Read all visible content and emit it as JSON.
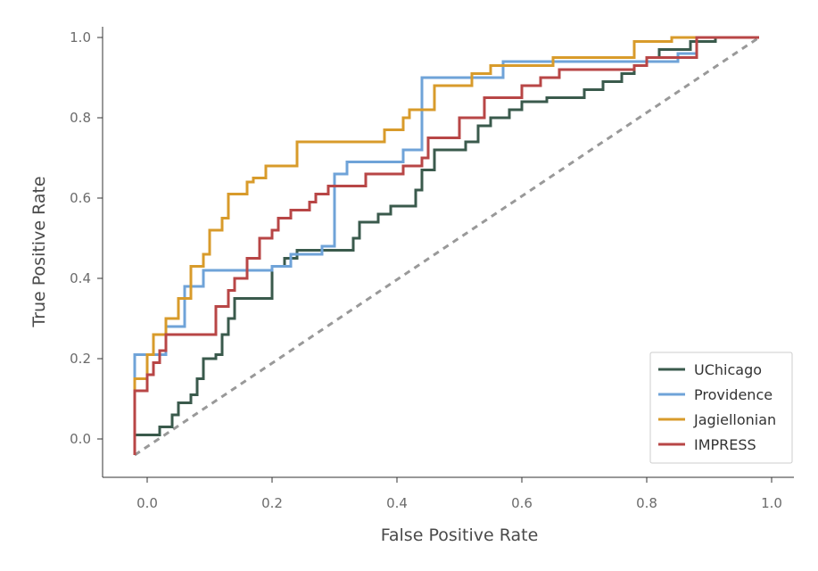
{
  "chart_data": {
    "type": "line",
    "title": "",
    "xlabel": "False Positive Rate",
    "ylabel": "True Positive Rate",
    "xlim": [
      -0.05,
      1.05
    ],
    "ylim": [
      -0.1,
      1.04
    ],
    "xticks": [
      0.0,
      0.2,
      0.4,
      0.6,
      0.8,
      1.0
    ],
    "yticks": [
      0.0,
      0.2,
      0.4,
      0.6,
      0.8,
      1.0
    ],
    "xtick_labels": [
      "0.0",
      "0.2",
      "0.4",
      "0.6",
      "0.8",
      "1.0"
    ],
    "ytick_labels": [
      "0.0",
      "0.2",
      "0.4",
      "0.6",
      "0.8",
      "1.0"
    ],
    "grid": false,
    "legend_position": "lower-right",
    "chance_line": {
      "points": [
        [
          -0.02,
          -0.04
        ],
        [
          0.98,
          1.0
        ]
      ],
      "style": "dashed",
      "color": "#999999"
    },
    "series": [
      {
        "name": "UChicago",
        "color": "#3a5a4c",
        "points": [
          [
            -0.02,
            -0.04
          ],
          [
            -0.02,
            0.01
          ],
          [
            0.02,
            0.01
          ],
          [
            0.02,
            0.03
          ],
          [
            0.04,
            0.03
          ],
          [
            0.04,
            0.06
          ],
          [
            0.05,
            0.06
          ],
          [
            0.05,
            0.09
          ],
          [
            0.07,
            0.09
          ],
          [
            0.07,
            0.11
          ],
          [
            0.08,
            0.11
          ],
          [
            0.08,
            0.13
          ],
          [
            0.08,
            0.15
          ],
          [
            0.09,
            0.15
          ],
          [
            0.09,
            0.2
          ],
          [
            0.11,
            0.2
          ],
          [
            0.11,
            0.21
          ],
          [
            0.12,
            0.21
          ],
          [
            0.12,
            0.26
          ],
          [
            0.13,
            0.26
          ],
          [
            0.13,
            0.3
          ],
          [
            0.14,
            0.3
          ],
          [
            0.14,
            0.35
          ],
          [
            0.2,
            0.35
          ],
          [
            0.2,
            0.43
          ],
          [
            0.22,
            0.43
          ],
          [
            0.22,
            0.45
          ],
          [
            0.24,
            0.45
          ],
          [
            0.24,
            0.47
          ],
          [
            0.33,
            0.47
          ],
          [
            0.33,
            0.5
          ],
          [
            0.34,
            0.5
          ],
          [
            0.34,
            0.54
          ],
          [
            0.37,
            0.54
          ],
          [
            0.37,
            0.56
          ],
          [
            0.39,
            0.56
          ],
          [
            0.39,
            0.58
          ],
          [
            0.43,
            0.58
          ],
          [
            0.43,
            0.62
          ],
          [
            0.44,
            0.62
          ],
          [
            0.44,
            0.67
          ],
          [
            0.46,
            0.67
          ],
          [
            0.46,
            0.72
          ],
          [
            0.51,
            0.72
          ],
          [
            0.51,
            0.74
          ],
          [
            0.53,
            0.74
          ],
          [
            0.53,
            0.78
          ],
          [
            0.55,
            0.78
          ],
          [
            0.55,
            0.8
          ],
          [
            0.58,
            0.8
          ],
          [
            0.58,
            0.82
          ],
          [
            0.6,
            0.82
          ],
          [
            0.6,
            0.84
          ],
          [
            0.64,
            0.84
          ],
          [
            0.64,
            0.85
          ],
          [
            0.7,
            0.85
          ],
          [
            0.7,
            0.87
          ],
          [
            0.73,
            0.87
          ],
          [
            0.73,
            0.89
          ],
          [
            0.76,
            0.89
          ],
          [
            0.76,
            0.91
          ],
          [
            0.78,
            0.91
          ],
          [
            0.78,
            0.93
          ],
          [
            0.8,
            0.93
          ],
          [
            0.8,
            0.95
          ],
          [
            0.82,
            0.95
          ],
          [
            0.82,
            0.97
          ],
          [
            0.87,
            0.97
          ],
          [
            0.87,
            0.99
          ],
          [
            0.91,
            0.99
          ],
          [
            0.91,
            1.0
          ],
          [
            0.98,
            1.0
          ]
        ]
      },
      {
        "name": "Providence",
        "color": "#6fa3d8",
        "points": [
          [
            -0.02,
            -0.04
          ],
          [
            -0.02,
            0.21
          ],
          [
            0.03,
            0.21
          ],
          [
            0.03,
            0.28
          ],
          [
            0.06,
            0.28
          ],
          [
            0.06,
            0.38
          ],
          [
            0.09,
            0.38
          ],
          [
            0.09,
            0.42
          ],
          [
            0.2,
            0.42
          ],
          [
            0.2,
            0.43
          ],
          [
            0.23,
            0.43
          ],
          [
            0.23,
            0.46
          ],
          [
            0.28,
            0.46
          ],
          [
            0.28,
            0.48
          ],
          [
            0.3,
            0.48
          ],
          [
            0.3,
            0.66
          ],
          [
            0.32,
            0.66
          ],
          [
            0.32,
            0.69
          ],
          [
            0.41,
            0.69
          ],
          [
            0.41,
            0.72
          ],
          [
            0.44,
            0.72
          ],
          [
            0.44,
            0.9
          ],
          [
            0.57,
            0.9
          ],
          [
            0.57,
            0.94
          ],
          [
            0.85,
            0.94
          ],
          [
            0.85,
            0.96
          ],
          [
            0.88,
            0.96
          ],
          [
            0.88,
            1.0
          ],
          [
            0.98,
            1.0
          ]
        ]
      },
      {
        "name": "Jagiellonian",
        "color": "#d89b2b",
        "points": [
          [
            -0.02,
            -0.04
          ],
          [
            -0.02,
            0.15
          ],
          [
            0.0,
            0.15
          ],
          [
            0.0,
            0.21
          ],
          [
            0.01,
            0.21
          ],
          [
            0.01,
            0.26
          ],
          [
            0.03,
            0.26
          ],
          [
            0.03,
            0.3
          ],
          [
            0.05,
            0.3
          ],
          [
            0.05,
            0.35
          ],
          [
            0.07,
            0.35
          ],
          [
            0.07,
            0.43
          ],
          [
            0.09,
            0.43
          ],
          [
            0.09,
            0.46
          ],
          [
            0.1,
            0.46
          ],
          [
            0.1,
            0.52
          ],
          [
            0.12,
            0.52
          ],
          [
            0.12,
            0.55
          ],
          [
            0.13,
            0.55
          ],
          [
            0.13,
            0.61
          ],
          [
            0.16,
            0.61
          ],
          [
            0.16,
            0.64
          ],
          [
            0.17,
            0.64
          ],
          [
            0.17,
            0.65
          ],
          [
            0.19,
            0.65
          ],
          [
            0.19,
            0.68
          ],
          [
            0.24,
            0.68
          ],
          [
            0.24,
            0.74
          ],
          [
            0.38,
            0.74
          ],
          [
            0.38,
            0.77
          ],
          [
            0.41,
            0.77
          ],
          [
            0.41,
            0.8
          ],
          [
            0.42,
            0.8
          ],
          [
            0.42,
            0.82
          ],
          [
            0.46,
            0.82
          ],
          [
            0.46,
            0.88
          ],
          [
            0.52,
            0.88
          ],
          [
            0.52,
            0.91
          ],
          [
            0.55,
            0.91
          ],
          [
            0.55,
            0.93
          ],
          [
            0.65,
            0.93
          ],
          [
            0.65,
            0.95
          ],
          [
            0.78,
            0.95
          ],
          [
            0.78,
            0.99
          ],
          [
            0.84,
            0.99
          ],
          [
            0.84,
            1.0
          ],
          [
            0.98,
            1.0
          ]
        ]
      },
      {
        "name": "IMPRESS",
        "color": "#b84646",
        "points": [
          [
            -0.02,
            -0.04
          ],
          [
            -0.02,
            0.12
          ],
          [
            0.0,
            0.12
          ],
          [
            0.0,
            0.16
          ],
          [
            0.01,
            0.16
          ],
          [
            0.01,
            0.19
          ],
          [
            0.02,
            0.19
          ],
          [
            0.02,
            0.22
          ],
          [
            0.03,
            0.22
          ],
          [
            0.03,
            0.26
          ],
          [
            0.11,
            0.26
          ],
          [
            0.11,
            0.33
          ],
          [
            0.13,
            0.33
          ],
          [
            0.13,
            0.37
          ],
          [
            0.14,
            0.37
          ],
          [
            0.14,
            0.4
          ],
          [
            0.16,
            0.4
          ],
          [
            0.16,
            0.45
          ],
          [
            0.18,
            0.45
          ],
          [
            0.18,
            0.5
          ],
          [
            0.2,
            0.5
          ],
          [
            0.2,
            0.52
          ],
          [
            0.21,
            0.52
          ],
          [
            0.21,
            0.55
          ],
          [
            0.23,
            0.55
          ],
          [
            0.23,
            0.57
          ],
          [
            0.26,
            0.57
          ],
          [
            0.26,
            0.59
          ],
          [
            0.27,
            0.59
          ],
          [
            0.27,
            0.61
          ],
          [
            0.29,
            0.61
          ],
          [
            0.29,
            0.63
          ],
          [
            0.35,
            0.63
          ],
          [
            0.35,
            0.66
          ],
          [
            0.41,
            0.66
          ],
          [
            0.41,
            0.68
          ],
          [
            0.44,
            0.68
          ],
          [
            0.44,
            0.7
          ],
          [
            0.45,
            0.7
          ],
          [
            0.45,
            0.75
          ],
          [
            0.5,
            0.75
          ],
          [
            0.5,
            0.8
          ],
          [
            0.54,
            0.8
          ],
          [
            0.54,
            0.85
          ],
          [
            0.6,
            0.85
          ],
          [
            0.6,
            0.88
          ],
          [
            0.63,
            0.88
          ],
          [
            0.63,
            0.9
          ],
          [
            0.66,
            0.9
          ],
          [
            0.66,
            0.92
          ],
          [
            0.78,
            0.92
          ],
          [
            0.78,
            0.93
          ],
          [
            0.8,
            0.93
          ],
          [
            0.8,
            0.95
          ],
          [
            0.88,
            0.95
          ],
          [
            0.88,
            1.0
          ],
          [
            0.98,
            1.0
          ]
        ]
      }
    ]
  }
}
